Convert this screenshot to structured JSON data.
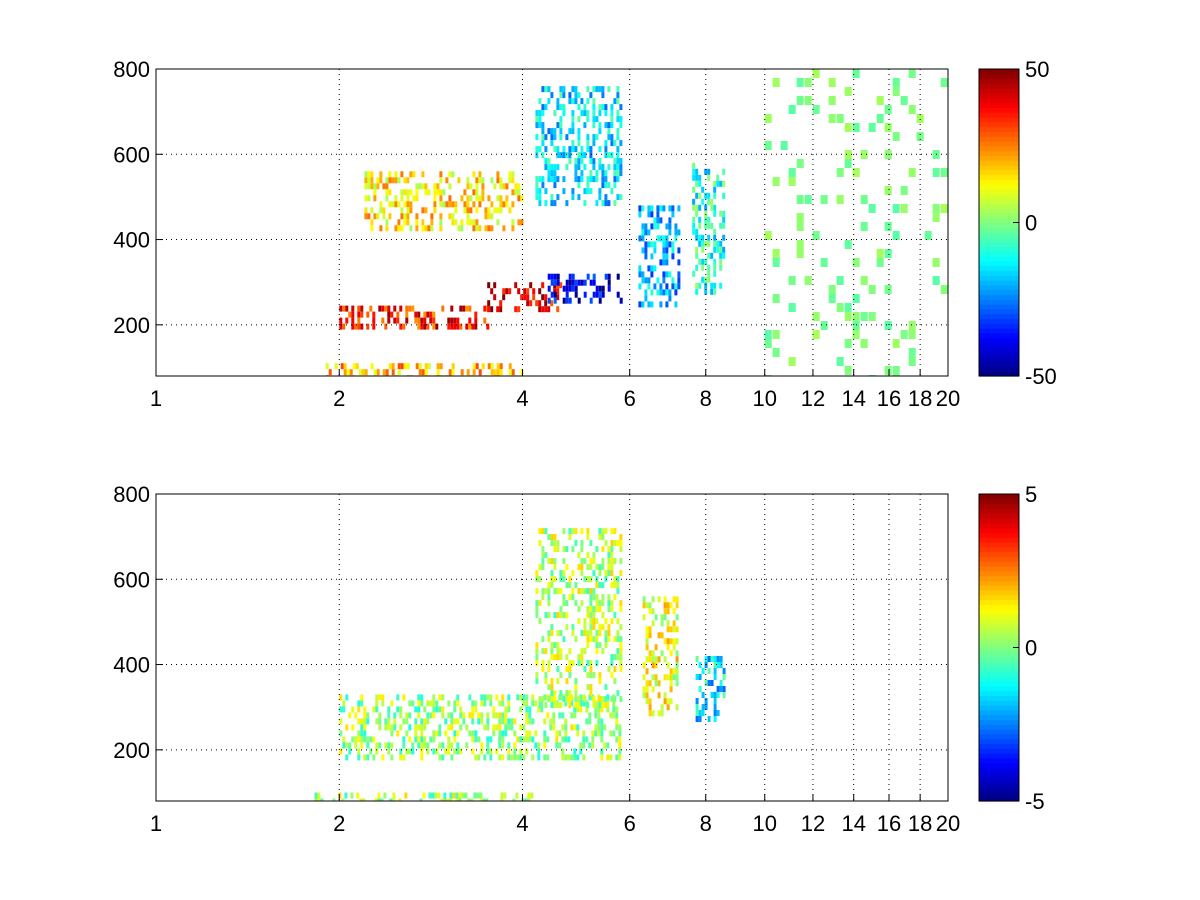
{
  "chart_data": [
    {
      "type": "heatmap",
      "title": "",
      "xlabel": "",
      "ylabel": "",
      "xscale": "log",
      "xlim": [
        1,
        20
      ],
      "ylim": [
        80,
        800
      ],
      "xticks": [
        1,
        2,
        4,
        6,
        8,
        10,
        12,
        14,
        16,
        18,
        20
      ],
      "xtick_labels": [
        "1",
        "2",
        "4",
        "6",
        "8",
        "10",
        "12",
        "14",
        "16",
        "18",
        "20"
      ],
      "yticks": [
        200,
        400,
        600,
        800
      ],
      "ytick_labels": [
        "200",
        "400",
        "600",
        "800"
      ],
      "grid": true,
      "colormap": "jet",
      "clim": [
        -50,
        50
      ],
      "colorbar_ticks": [
        -50,
        0,
        50
      ],
      "colorbar_labels": [
        "-50",
        "0",
        "50"
      ],
      "features": [
        {
          "x": [
            2.0,
            3.5
          ],
          "y": [
            195,
            245
          ],
          "value": 35
        },
        {
          "x": [
            3.5,
            4.6
          ],
          "y": [
            235,
            300
          ],
          "value": 40
        },
        {
          "x": [
            4.4,
            5.8
          ],
          "y": [
            250,
            320
          ],
          "value": -40
        },
        {
          "x": [
            2.2,
            4.0
          ],
          "y": [
            420,
            560
          ],
          "value": 15
        },
        {
          "x": [
            4.2,
            5.8
          ],
          "y": [
            480,
            760
          ],
          "value": -15
        },
        {
          "x": [
            6.2,
            7.2
          ],
          "y": [
            250,
            480
          ],
          "value": -20
        },
        {
          "x": [
            7.6,
            8.6
          ],
          "y": [
            280,
            580
          ],
          "value": -10
        },
        {
          "x": [
            1.9,
            4.0
          ],
          "y": [
            80,
            110
          ],
          "value": 20
        }
      ],
      "noise_range": [
        10,
        20
      ],
      "noise_level": 4
    },
    {
      "type": "heatmap",
      "title": "",
      "xlabel": "",
      "ylabel": "",
      "xscale": "log",
      "xlim": [
        1,
        20
      ],
      "ylim": [
        80,
        800
      ],
      "xticks": [
        1,
        2,
        4,
        6,
        8,
        10,
        12,
        14,
        16,
        18,
        20
      ],
      "xtick_labels": [
        "1",
        "2",
        "4",
        "6",
        "8",
        "10",
        "12",
        "14",
        "16",
        "18",
        "20"
      ],
      "yticks": [
        200,
        400,
        600,
        800
      ],
      "ytick_labels": [
        "200",
        "400",
        "600",
        "800"
      ],
      "grid": true,
      "colormap": "jet",
      "clim": [
        -5,
        5
      ],
      "colorbar_ticks": [
        -5,
        0,
        5
      ],
      "colorbar_labels": [
        "-5",
        "0",
        "5"
      ],
      "features": [
        {
          "x": [
            2.0,
            5.8
          ],
          "y": [
            180,
            330
          ],
          "value": 0.3
        },
        {
          "x": [
            4.2,
            5.8
          ],
          "y": [
            300,
            720
          ],
          "value": 0.5
        },
        {
          "x": [
            6.3,
            7.2
          ],
          "y": [
            280,
            560
          ],
          "value": 1.0
        },
        {
          "x": [
            7.7,
            8.6
          ],
          "y": [
            270,
            420
          ],
          "value": -1.5
        },
        {
          "x": [
            1.8,
            4.2
          ],
          "y": [
            80,
            100
          ],
          "value": 0.4
        }
      ],
      "noise_range": null,
      "noise_level": 0
    }
  ]
}
